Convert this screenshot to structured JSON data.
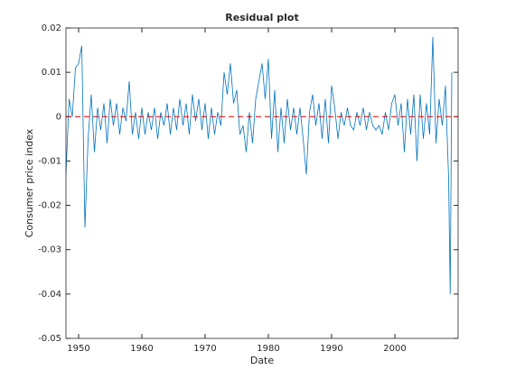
{
  "chart_data": {
    "type": "line",
    "title": "Residual plot",
    "xlabel": "Date",
    "ylabel": "Consumer price index",
    "x": [
      1948,
      1948.5,
      1949,
      1949.5,
      1950,
      1950.5,
      1951,
      1951.5,
      1952,
      1952.5,
      1953,
      1953.5,
      1954,
      1954.5,
      1955,
      1955.5,
      1956,
      1956.5,
      1957,
      1957.5,
      1958,
      1958.5,
      1959,
      1959.5,
      1960,
      1960.5,
      1961,
      1961.5,
      1962,
      1962.5,
      1963,
      1963.5,
      1964,
      1964.5,
      1965,
      1965.5,
      1966,
      1966.5,
      1967,
      1967.5,
      1968,
      1968.5,
      1969,
      1969.5,
      1970,
      1970.5,
      1971,
      1971.5,
      1972,
      1972.5,
      1973,
      1973.5,
      1974,
      1974.5,
      1975,
      1975.5,
      1976,
      1976.5,
      1977,
      1977.5,
      1978,
      1978.5,
      1979,
      1979.5,
      1980,
      1980.5,
      1981,
      1981.5,
      1982,
      1982.5,
      1983,
      1983.5,
      1984,
      1984.5,
      1985,
      1985.5,
      1986,
      1986.5,
      1987,
      1987.5,
      1988,
      1988.5,
      1989,
      1989.5,
      1990,
      1990.5,
      1991,
      1991.5,
      1992,
      1992.5,
      1993,
      1993.5,
      1994,
      1994.5,
      1995,
      1995.5,
      1996,
      1996.5,
      1997,
      1997.5,
      1998,
      1998.5,
      1999,
      1999.5,
      2000,
      2000.5,
      2001,
      2001.5,
      2002,
      2002.5,
      2003,
      2003.5,
      2004,
      2004.5,
      2005,
      2005.5,
      2006,
      2006.5,
      2007,
      2007.5,
      2008,
      2008.5,
      2008.75,
      2009
    ],
    "series": [
      {
        "color": "#0072bd",
        "values": [
          -0.013,
          0.004,
          0.0,
          0.011,
          0.012,
          0.016,
          -0.025,
          -0.005,
          0.005,
          -0.008,
          0.002,
          -0.003,
          0.003,
          -0.006,
          0.004,
          -0.002,
          0.003,
          -0.004,
          0.002,
          -0.001,
          0.008,
          -0.004,
          0.001,
          -0.005,
          0.002,
          -0.004,
          0.001,
          -0.003,
          0.002,
          -0.005,
          0.001,
          -0.002,
          0.003,
          -0.004,
          0.002,
          -0.003,
          0.004,
          -0.002,
          0.003,
          -0.004,
          0.005,
          -0.001,
          0.004,
          -0.003,
          0.003,
          -0.005,
          0.002,
          -0.004,
          0.001,
          -0.002,
          0.01,
          0.005,
          0.012,
          0.003,
          0.006,
          -0.004,
          -0.002,
          -0.008,
          0.001,
          -0.006,
          0.004,
          0.008,
          0.012,
          0.004,
          0.013,
          -0.005,
          0.006,
          -0.008,
          0.002,
          -0.006,
          0.004,
          -0.003,
          0.002,
          -0.004,
          0.002,
          -0.005,
          -0.013,
          0.001,
          0.005,
          -0.002,
          0.003,
          -0.005,
          0.004,
          -0.006,
          0.007,
          0.002,
          -0.005,
          0.001,
          -0.002,
          0.002,
          -0.002,
          -0.003,
          0.001,
          -0.002,
          0.002,
          -0.003,
          0.001,
          -0.002,
          -0.003,
          -0.002,
          -0.004,
          0.001,
          -0.003,
          0.003,
          0.005,
          -0.002,
          0.003,
          -0.008,
          0.004,
          -0.004,
          0.005,
          -0.01,
          0.005,
          -0.005,
          0.003,
          -0.004,
          0.018,
          -0.006,
          0.004,
          -0.002,
          0.007,
          -0.014,
          -0.04,
          0.01
        ]
      }
    ],
    "reference_line": {
      "value": 0,
      "color": "#e00000"
    },
    "xlim": [
      1948,
      2010
    ],
    "ylim": [
      -0.05,
      0.02
    ],
    "xticks": [
      1950,
      1960,
      1970,
      1980,
      1990,
      2000
    ],
    "yticks": [
      0.02,
      0.01,
      0,
      -0.01,
      -0.02,
      -0.03,
      -0.04,
      -0.05
    ]
  }
}
